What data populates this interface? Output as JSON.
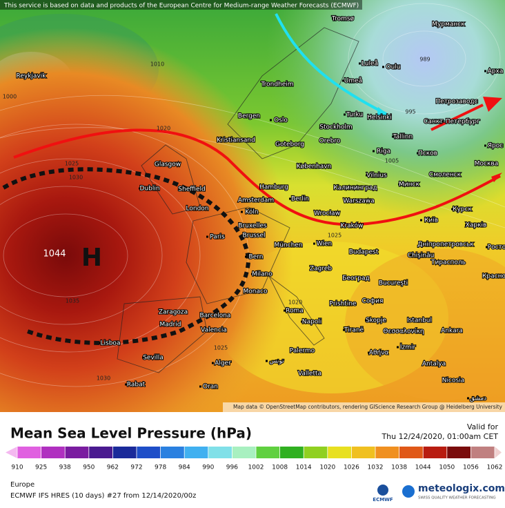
{
  "header": {
    "notice": "This service is based on data and products of the European Centre for Medium-range Weather Forecasts (ECMWF)"
  },
  "map": {
    "cities": [
      "Reykjavik",
      "Tromsø",
      "Мурманск",
      "Luleå",
      "Oulu",
      "Umeå",
      "Trondheim",
      "Арха",
      "Петрозаводс",
      "Санкт-Петербург",
      "Bergen",
      "Oslo",
      "Turku",
      "Helsinki",
      "Stockholm",
      "Kristiansand",
      "Goteborg",
      "Orebro",
      "Tallinn",
      "Riga",
      "Псков",
      "Ярос",
      "Glasgow",
      "København",
      "Vilnius",
      "Минск",
      "Смоленск",
      "Москва",
      "Dublin",
      "Sheffield",
      "Hamburg",
      "Калининград",
      "London",
      "Amsterdam",
      "Berlin",
      "Warszawa",
      "Wrocław",
      "Курск",
      "Köln",
      "Bruxelles",
      "Brussel",
      "Paris",
      "Kraków",
      "Київ",
      "Харків",
      "München",
      "Wien",
      "Дніпропетровськ",
      "Bern",
      "Budapest",
      "Chişinău",
      "Росто",
      "Milano",
      "Zagreb",
      "Београд",
      "Bucureşti",
      "Тирасполь",
      "Monaco",
      "Красно",
      "Roma",
      "Prishtine",
      "София",
      "Istanbul",
      "Zaragoza",
      "Barcelona",
      "Madrid",
      "Napoli",
      "Skopje",
      "Valencia",
      "Ankara",
      "Tiranë",
      "Θεσσαλονίκη",
      "Lisboa",
      "Sevilla",
      "Palermo",
      "Αθήνα",
      "İzmir",
      "Alger",
      "تونس",
      "Valletta",
      "Antalya",
      "Rabat",
      "Oran",
      "Nicosia",
      "دمشق"
    ],
    "isobar_labels": [
      "1010",
      "1000",
      "989",
      "995",
      "1005",
      "1020",
      "1025",
      "1030",
      "1035",
      "1030",
      "1025",
      "1020",
      "1025"
    ],
    "high_value": "1044",
    "high_symbol": "H",
    "attribution": "Map data © OpenStreetMap contributors, rendering GIScience Research Group @ Heidelberg University"
  },
  "legend": {
    "title": "Mean Sea Level Pressure (hPa)",
    "valid_label": "Valid for",
    "valid_time": "Thu 12/24/2020, 01:00am CET",
    "ticks": [
      910,
      925,
      938,
      950,
      962,
      972,
      978,
      984,
      990,
      996,
      1002,
      1008,
      1014,
      1020,
      1026,
      1032,
      1038,
      1044,
      1050,
      1056,
      1062
    ]
  },
  "footer": {
    "region": "Europe",
    "model": "ECMWF IFS HRES (10 days) #27 from 12/14/2020/00z",
    "ecmwf": "ECMWF",
    "brand": "meteologix.com",
    "tagline": "SWISS QUALITY WEATHER FORECASTING"
  }
}
